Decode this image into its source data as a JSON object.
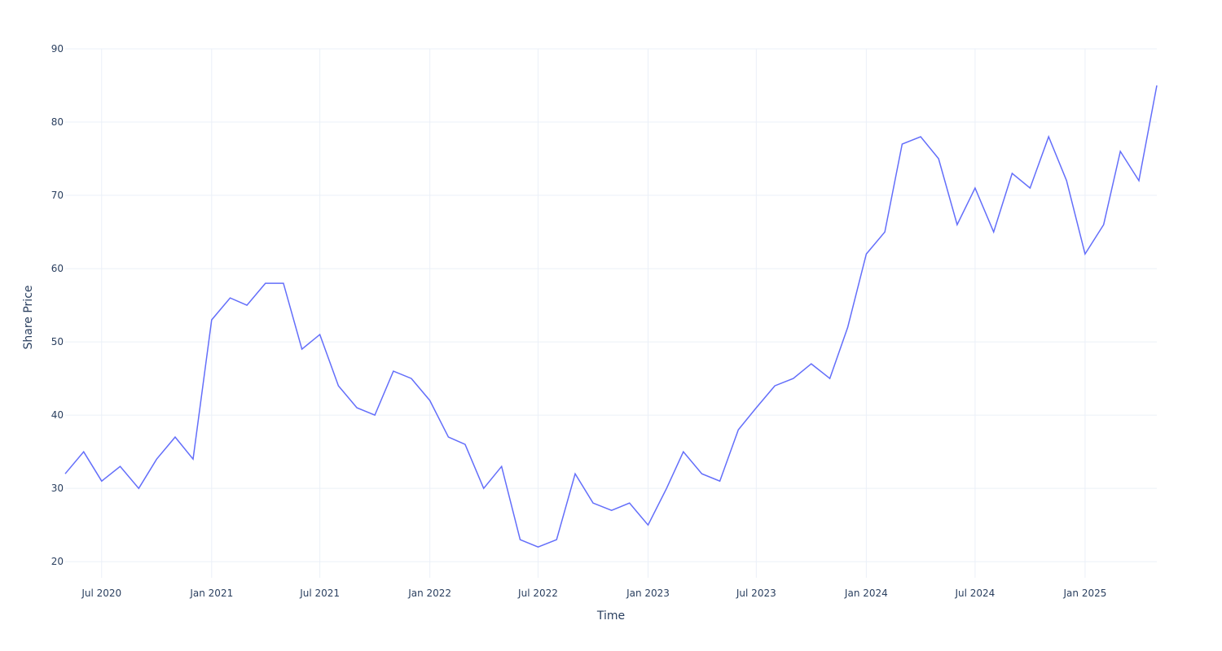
{
  "chart_data": {
    "type": "line",
    "x_label": "Time",
    "y_label": "Share Price",
    "x": [
      "2020-05",
      "2020-06",
      "2020-07",
      "2020-08",
      "2020-09",
      "2020-10",
      "2020-11",
      "2020-12",
      "2021-01",
      "2021-02",
      "2021-03",
      "2021-04",
      "2021-05",
      "2021-06",
      "2021-07",
      "2021-08",
      "2021-09",
      "2021-10",
      "2021-11",
      "2021-12",
      "2022-01",
      "2022-02",
      "2022-03",
      "2022-04",
      "2022-05",
      "2022-06",
      "2022-07",
      "2022-08",
      "2022-09",
      "2022-10",
      "2022-11",
      "2022-12",
      "2023-01",
      "2023-02",
      "2023-03",
      "2023-04",
      "2023-05",
      "2023-06",
      "2023-07",
      "2023-08",
      "2023-09",
      "2023-10",
      "2023-11",
      "2023-12",
      "2024-01",
      "2024-02",
      "2024-03",
      "2024-04",
      "2024-05",
      "2024-06",
      "2024-07",
      "2024-08",
      "2024-09",
      "2024-10",
      "2024-11",
      "2024-12",
      "2025-01",
      "2025-02",
      "2025-03",
      "2025-04",
      "2025-05"
    ],
    "series": [
      {
        "name": "Share Price",
        "color": "#636efa",
        "values": [
          32,
          35,
          31,
          33,
          30,
          34,
          37,
          34,
          53,
          56,
          55,
          58,
          58,
          49,
          51,
          44,
          41,
          40,
          46,
          45,
          42,
          37,
          36,
          30,
          33,
          23,
          22,
          23,
          32,
          28,
          27,
          28,
          25,
          30,
          35,
          32,
          31,
          38,
          41,
          44,
          45,
          47,
          45,
          52,
          62,
          65,
          77,
          78,
          75,
          66,
          71,
          65,
          73,
          71,
          78,
          72,
          62,
          66,
          76,
          72,
          85
        ]
      }
    ],
    "xlim": [
      "2020-05",
      "2025-05"
    ],
    "xticks": [
      {
        "value": "2020-07",
        "label": "Jul 2020"
      },
      {
        "value": "2021-01",
        "label": "Jan 2021"
      },
      {
        "value": "2021-07",
        "label": "Jul 2021"
      },
      {
        "value": "2022-01",
        "label": "Jan 2022"
      },
      {
        "value": "2022-07",
        "label": "Jul 2022"
      },
      {
        "value": "2023-01",
        "label": "Jan 2023"
      },
      {
        "value": "2023-07",
        "label": "Jul 2023"
      },
      {
        "value": "2024-01",
        "label": "Jan 2024"
      },
      {
        "value": "2024-07",
        "label": "Jul 2024"
      },
      {
        "value": "2025-01",
        "label": "Jan 2025"
      }
    ],
    "ylim": [
      17.8,
      90
    ],
    "yticks": [
      20,
      30,
      40,
      50,
      60,
      70,
      80,
      90
    ],
    "grid": true
  }
}
